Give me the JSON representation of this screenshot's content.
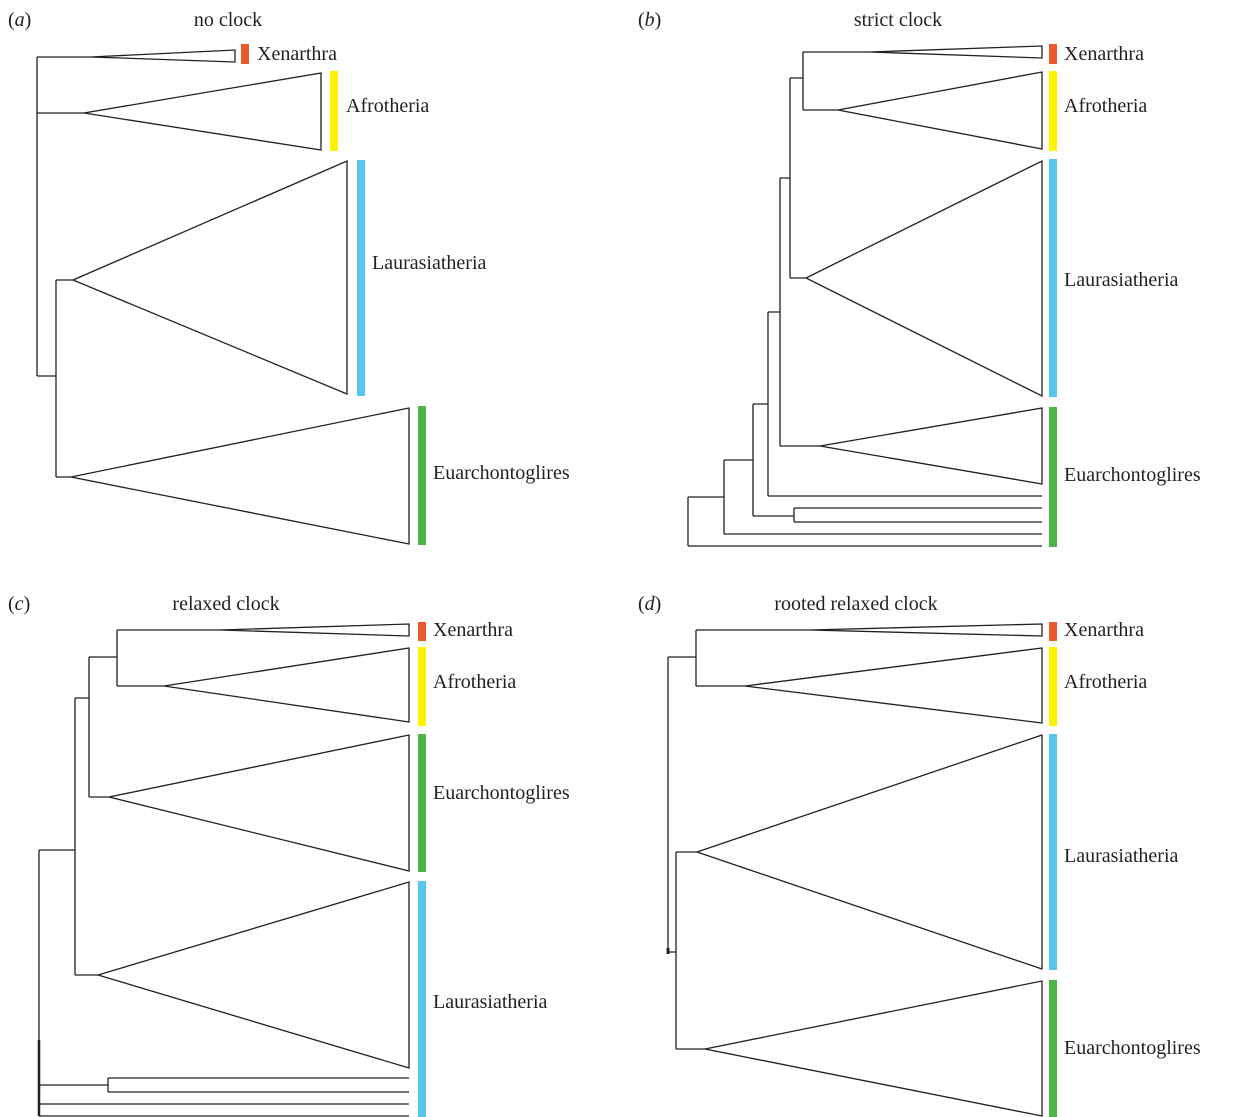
{
  "panels": [
    {
      "id": "a",
      "letter": "a",
      "title": "no clock",
      "clades": [
        "Xenarthra",
        "Afrotheria",
        "Laurasiatheria",
        "Euarchontoglires"
      ]
    },
    {
      "id": "b",
      "letter": "b",
      "title": "strict clock",
      "clades": [
        "Xenarthra",
        "Afrotheria",
        "Laurasiatheria",
        "Euarchontoglires"
      ]
    },
    {
      "id": "c",
      "letter": "c",
      "title": "relaxed clock",
      "clades": [
        "Xenarthra",
        "Afrotheria",
        "Euarchontoglires",
        "Laurasiatheria"
      ]
    },
    {
      "id": "d",
      "letter": "d",
      "title": "rooted relaxed clock",
      "clades": [
        "Xenarthra",
        "Afrotheria",
        "Laurasiatheria",
        "Euarchontoglires"
      ]
    }
  ],
  "colors": {
    "Xenarthra": "#ea5a2c",
    "Afrotheria": "#fff200",
    "Laurasiatheria": "#55c8ec",
    "Euarchontoglires": "#4db448"
  }
}
